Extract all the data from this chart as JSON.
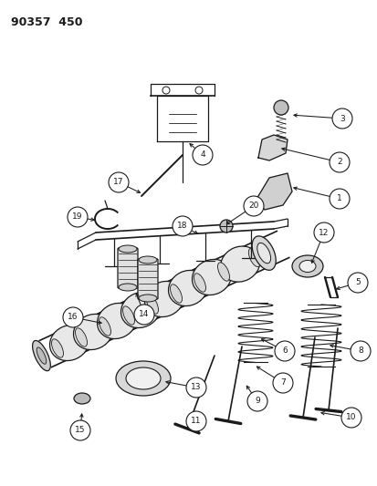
{
  "title": "90357  450",
  "background_color": "#ffffff",
  "line_color": "#1a1a1a",
  "fig_width": 4.14,
  "fig_height": 5.33,
  "dpi": 100
}
